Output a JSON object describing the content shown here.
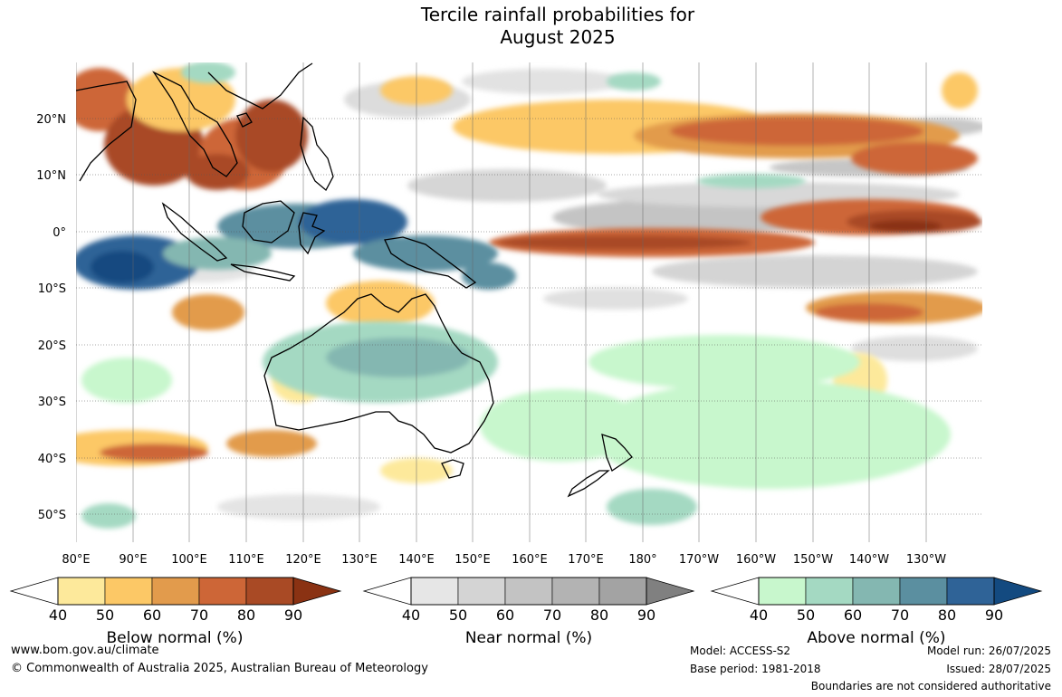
{
  "title_line1": "Tercile rainfall probabilities for",
  "title_line2": "August 2025",
  "map": {
    "lat_labels": [
      "20°N",
      "10°N",
      "0°",
      "10°S",
      "20°S",
      "30°S",
      "40°S",
      "50°S"
    ],
    "lon_labels": [
      "80°E",
      "90°E",
      "100°E",
      "110°E",
      "120°E",
      "130°E",
      "140°E",
      "150°E",
      "160°E",
      "170°E",
      "180°",
      "170°W",
      "160°W",
      "150°W",
      "140°W",
      "130°W"
    ]
  },
  "colorbars": [
    {
      "title": "Below normal (%)",
      "ticks": [
        "40",
        "50",
        "60",
        "70",
        "80",
        "90"
      ],
      "colors": [
        "#ffffff",
        "#fde99b",
        "#fcc866",
        "#e29b4c",
        "#cd6637",
        "#a94a25",
        "#8a3213"
      ]
    },
    {
      "title": "Near normal (%)",
      "ticks": [
        "40",
        "50",
        "60",
        "70",
        "80",
        "90"
      ],
      "colors": [
        "#ffffff",
        "#e6e6e6",
        "#d4d4d4",
        "#c3c3c3",
        "#b3b3b3",
        "#a3a3a3",
        "#808080"
      ]
    },
    {
      "title": "Above normal (%)",
      "ticks": [
        "40",
        "50",
        "60",
        "70",
        "80",
        "90"
      ],
      "colors": [
        "#ffffff",
        "#c8f7cd",
        "#a4d9c2",
        "#84b7b1",
        "#5b8fa0",
        "#2f6397",
        "#134a80"
      ]
    }
  ],
  "footer": {
    "website": "www.bom.gov.au/climate",
    "copyright": "© Commonwealth of Australia 2025, Australian Bureau of Meteorology",
    "model": "Model: ACCESS-S2",
    "base_period": "Base period: 1981-2018",
    "model_run": "Model run: 26/07/2025",
    "issued": "Issued: 28/07/2025",
    "boundaries": "Boundaries are not considered authoritative"
  }
}
